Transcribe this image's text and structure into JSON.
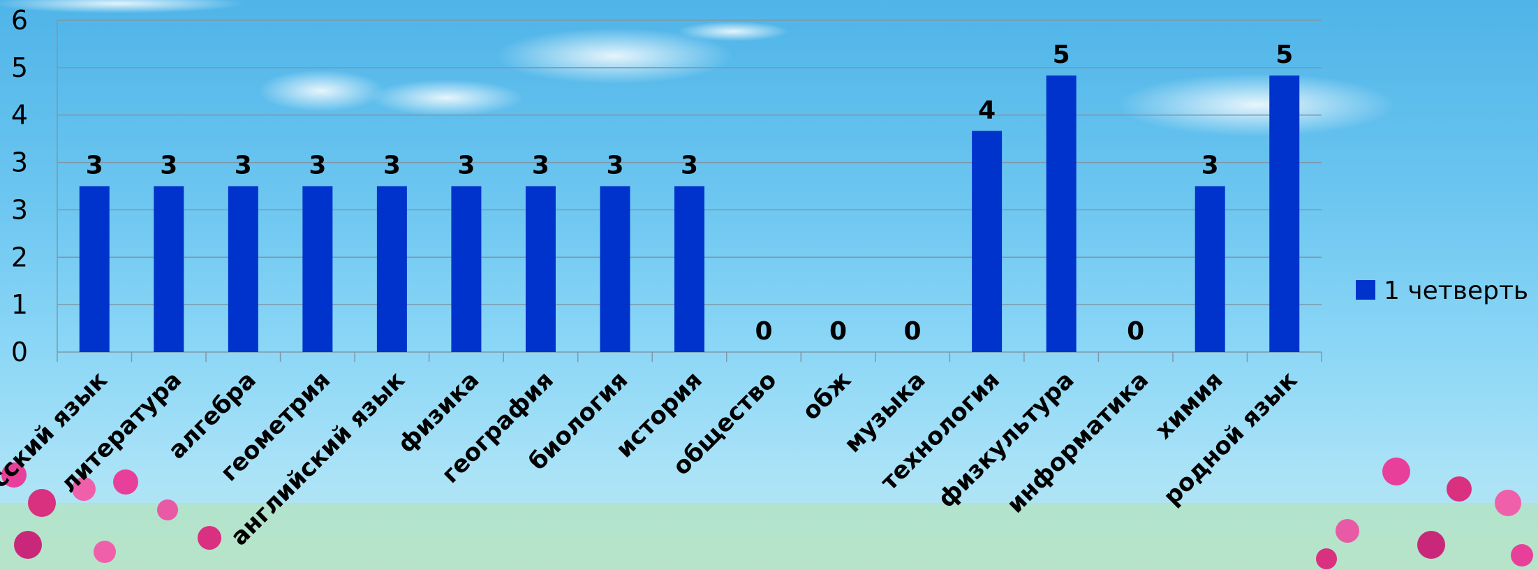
{
  "chart_data": {
    "type": "bar",
    "categories": [
      "русский язык",
      "литература",
      "алгебра",
      "геометрия",
      "английский язык",
      "физика",
      "география",
      "биология",
      "история",
      "общество",
      "обж",
      "музыка",
      "технология",
      "физкультура",
      "информатика",
      "химия",
      "родной язык"
    ],
    "series": [
      {
        "name": "1 четверть",
        "values": [
          3,
          3,
          3,
          3,
          3,
          3,
          3,
          3,
          3,
          0,
          0,
          0,
          4,
          5,
          0,
          3,
          5
        ]
      }
    ],
    "yticks": [
      "0",
      "1",
      "2",
      "3",
      "3",
      "4",
      "5",
      "6"
    ],
    "ylim": [
      0,
      6
    ],
    "grid": true,
    "legend_position": "right",
    "data_labels": true,
    "colors": {
      "bar": "#0033cc",
      "grid": "#7f97a8"
    }
  }
}
